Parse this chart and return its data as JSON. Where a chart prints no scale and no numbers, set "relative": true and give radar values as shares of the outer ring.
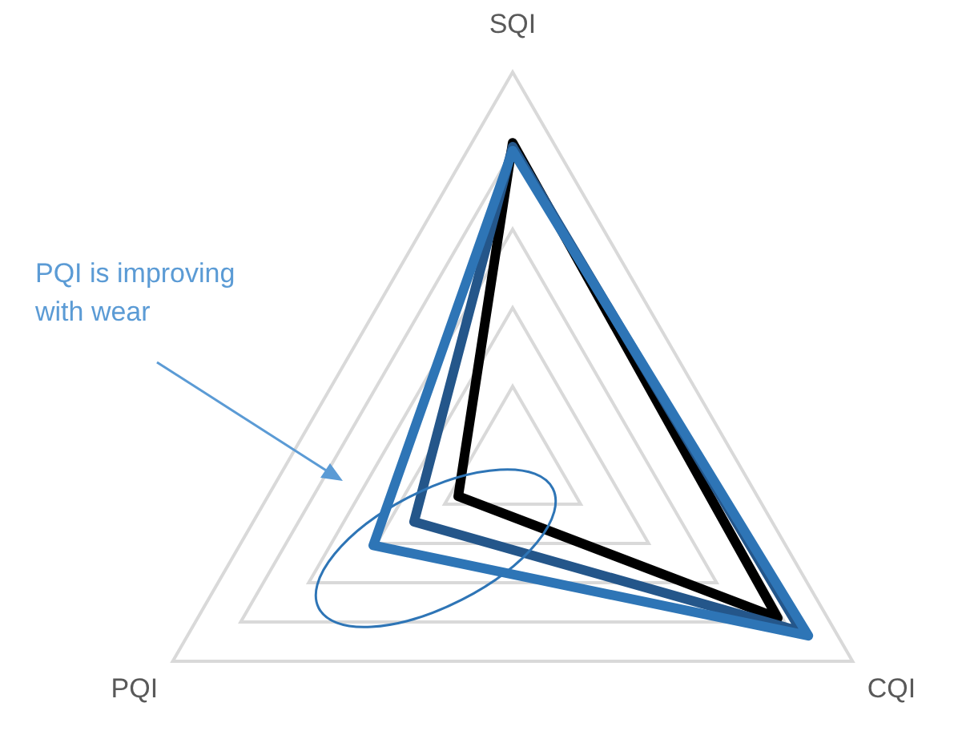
{
  "chart_data": {
    "type": "radar",
    "relative": true,
    "grid": true,
    "categories": [
      "SQI",
      "CQI",
      "PQI"
    ],
    "series": [
      {
        "color": "#000000",
        "values": [
          0.82,
          0.78,
          0.16
        ]
      },
      {
        "color": "#24568a",
        "values": [
          0.81,
          0.85,
          0.29
        ]
      },
      {
        "color": "#2e75b6",
        "values": [
          0.8,
          0.87,
          0.41
        ]
      }
    ],
    "annotations": [
      "PQI is improving with wear"
    ]
  }
}
